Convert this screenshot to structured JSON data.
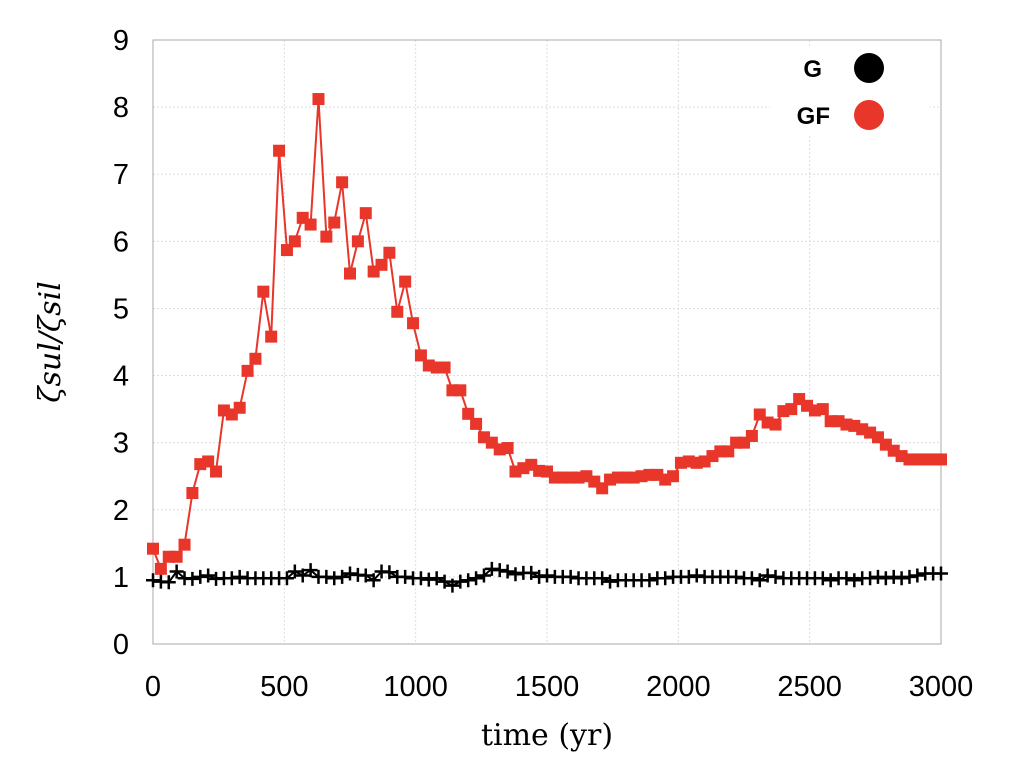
{
  "chart_data": {
    "type": "line",
    "xlabel": "time (yr)",
    "ylabel": "ζsul/ζsil",
    "xlim": [
      0,
      3000
    ],
    "ylim": [
      0,
      9
    ],
    "x_ticks": [
      "0",
      "500",
      "1000",
      "1500",
      "2000",
      "2500",
      "3000"
    ],
    "y_ticks": [
      "0",
      "1",
      "2",
      "3",
      "4",
      "5",
      "6",
      "7",
      "8",
      "9"
    ],
    "grid": true,
    "legend_position": "top-right",
    "series": [
      {
        "name": "G",
        "color": "#000000",
        "marker": "plus",
        "x": [
          0,
          30,
          60,
          90,
          120,
          150,
          180,
          210,
          240,
          270,
          300,
          330,
          360,
          390,
          420,
          450,
          480,
          510,
          540,
          570,
          600,
          630,
          660,
          690,
          720,
          750,
          780,
          810,
          840,
          870,
          900,
          930,
          960,
          990,
          1020,
          1050,
          1080,
          1110,
          1140,
          1170,
          1200,
          1230,
          1260,
          1290,
          1320,
          1350,
          1380,
          1410,
          1440,
          1470,
          1500,
          1530,
          1560,
          1590,
          1620,
          1650,
          1680,
          1710,
          1740,
          1770,
          1800,
          1830,
          1860,
          1890,
          1920,
          1950,
          1980,
          2010,
          2040,
          2070,
          2100,
          2130,
          2160,
          2190,
          2220,
          2250,
          2280,
          2310,
          2340,
          2370,
          2400,
          2430,
          2460,
          2490,
          2520,
          2550,
          2580,
          2610,
          2640,
          2670,
          2700,
          2730,
          2760,
          2790,
          2820,
          2850,
          2880,
          2910,
          2940,
          2970,
          3000
        ],
        "y": [
          0.95,
          0.93,
          0.92,
          1.08,
          0.98,
          0.97,
          1.0,
          1.02,
          0.97,
          0.98,
          0.98,
          1.0,
          0.98,
          0.98,
          0.98,
          0.98,
          0.98,
          0.98,
          1.08,
          1.02,
          1.1,
          1.0,
          1.0,
          0.98,
          1.0,
          1.05,
          1.03,
          1.02,
          0.95,
          1.08,
          1.07,
          1.0,
          1.0,
          0.98,
          0.98,
          0.96,
          0.98,
          0.93,
          0.87,
          0.93,
          0.95,
          0.98,
          1.02,
          1.12,
          1.1,
          1.08,
          1.04,
          1.06,
          1.06,
          1.0,
          1.02,
          1.0,
          1.0,
          1.0,
          0.98,
          0.98,
          0.98,
          0.98,
          0.93,
          0.95,
          0.95,
          0.95,
          0.95,
          0.95,
          0.98,
          0.98,
          1.0,
          1.0,
          1.0,
          1.02,
          1.0,
          1.0,
          1.0,
          1.0,
          1.0,
          0.98,
          0.98,
          0.95,
          1.02,
          1.0,
          0.98,
          0.98,
          0.98,
          0.98,
          0.98,
          0.98,
          0.95,
          0.98,
          0.98,
          0.95,
          0.98,
          0.98,
          1.0,
          0.98,
          1.0,
          0.98,
          1.0,
          1.02,
          1.05,
          1.05,
          1.05
        ]
      },
      {
        "name": "GF",
        "color": "#e8362a",
        "marker": "square",
        "x": [
          0,
          30,
          60,
          90,
          120,
          150,
          180,
          210,
          240,
          270,
          300,
          330,
          360,
          390,
          420,
          450,
          480,
          510,
          540,
          570,
          600,
          630,
          660,
          690,
          720,
          750,
          780,
          810,
          840,
          870,
          900,
          930,
          960,
          990,
          1020,
          1050,
          1080,
          1110,
          1140,
          1170,
          1200,
          1230,
          1260,
          1290,
          1320,
          1350,
          1380,
          1410,
          1440,
          1470,
          1500,
          1530,
          1560,
          1590,
          1620,
          1650,
          1680,
          1710,
          1740,
          1770,
          1800,
          1830,
          1860,
          1890,
          1920,
          1950,
          1980,
          2010,
          2040,
          2070,
          2100,
          2130,
          2160,
          2190,
          2220,
          2250,
          2280,
          2310,
          2340,
          2370,
          2400,
          2430,
          2460,
          2490,
          2520,
          2550,
          2580,
          2610,
          2640,
          2670,
          2700,
          2730,
          2760,
          2790,
          2820,
          2850,
          2880,
          2910,
          2940,
          2970,
          3000
        ],
        "y": [
          1.42,
          1.12,
          1.3,
          1.3,
          1.48,
          2.25,
          2.68,
          2.72,
          2.57,
          3.48,
          3.42,
          3.52,
          4.07,
          4.25,
          5.25,
          4.58,
          7.35,
          5.87,
          6.0,
          6.35,
          6.25,
          8.12,
          6.07,
          6.28,
          6.88,
          5.52,
          6.0,
          6.42,
          5.55,
          5.65,
          5.83,
          4.95,
          5.4,
          4.78,
          4.3,
          4.15,
          4.12,
          4.12,
          3.78,
          3.78,
          3.43,
          3.28,
          3.08,
          3.0,
          2.9,
          2.92,
          2.57,
          2.62,
          2.67,
          2.58,
          2.57,
          2.48,
          2.48,
          2.48,
          2.48,
          2.5,
          2.42,
          2.32,
          2.45,
          2.48,
          2.48,
          2.48,
          2.5,
          2.52,
          2.52,
          2.45,
          2.5,
          2.7,
          2.72,
          2.7,
          2.72,
          2.8,
          2.87,
          2.87,
          3.0,
          3.0,
          3.1,
          3.42,
          3.3,
          3.27,
          3.47,
          3.5,
          3.65,
          3.55,
          3.48,
          3.5,
          3.32,
          3.32,
          3.27,
          3.25,
          3.2,
          3.15,
          3.08,
          2.97,
          2.88,
          2.8,
          2.75,
          2.75,
          2.75,
          2.75,
          2.75
        ]
      }
    ]
  }
}
